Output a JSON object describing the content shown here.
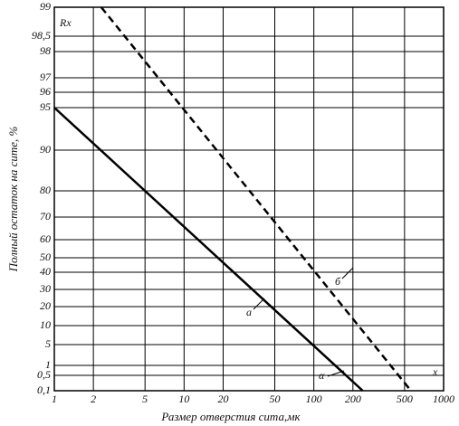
{
  "chart_data": {
    "type": "line",
    "xlabel": "Размер отверстия сита,мк",
    "ylabel": "Полный остаток на сите, %",
    "xscale": "log",
    "xlim": [
      1,
      1000
    ],
    "xticks": [
      1,
      2,
      5,
      10,
      20,
      50,
      100,
      200,
      500,
      1000
    ],
    "ylim": [
      0.1,
      99
    ],
    "yticks": [
      {
        "value": 0.1,
        "label": "0,1"
      },
      {
        "value": 0.5,
        "label": "0,5"
      },
      1,
      5,
      10,
      20,
      30,
      40,
      50,
      60,
      70,
      80,
      90,
      95,
      96,
      97,
      98,
      {
        "value": 98.5,
        "label": "98,5"
      },
      99
    ],
    "grid": true,
    "series": [
      {
        "color": "#000",
        "dash": false,
        "x": [
          1,
          238
        ],
        "values": [
          95,
          0.1
        ]
      },
      {
        "color": "#000",
        "dash": true,
        "x": [
          2.3,
          560
        ],
        "values": [
          99,
          0.1
        ]
      }
    ],
    "annotations": [
      "Rx",
      "x",
      "а",
      "б",
      "α"
    ]
  }
}
